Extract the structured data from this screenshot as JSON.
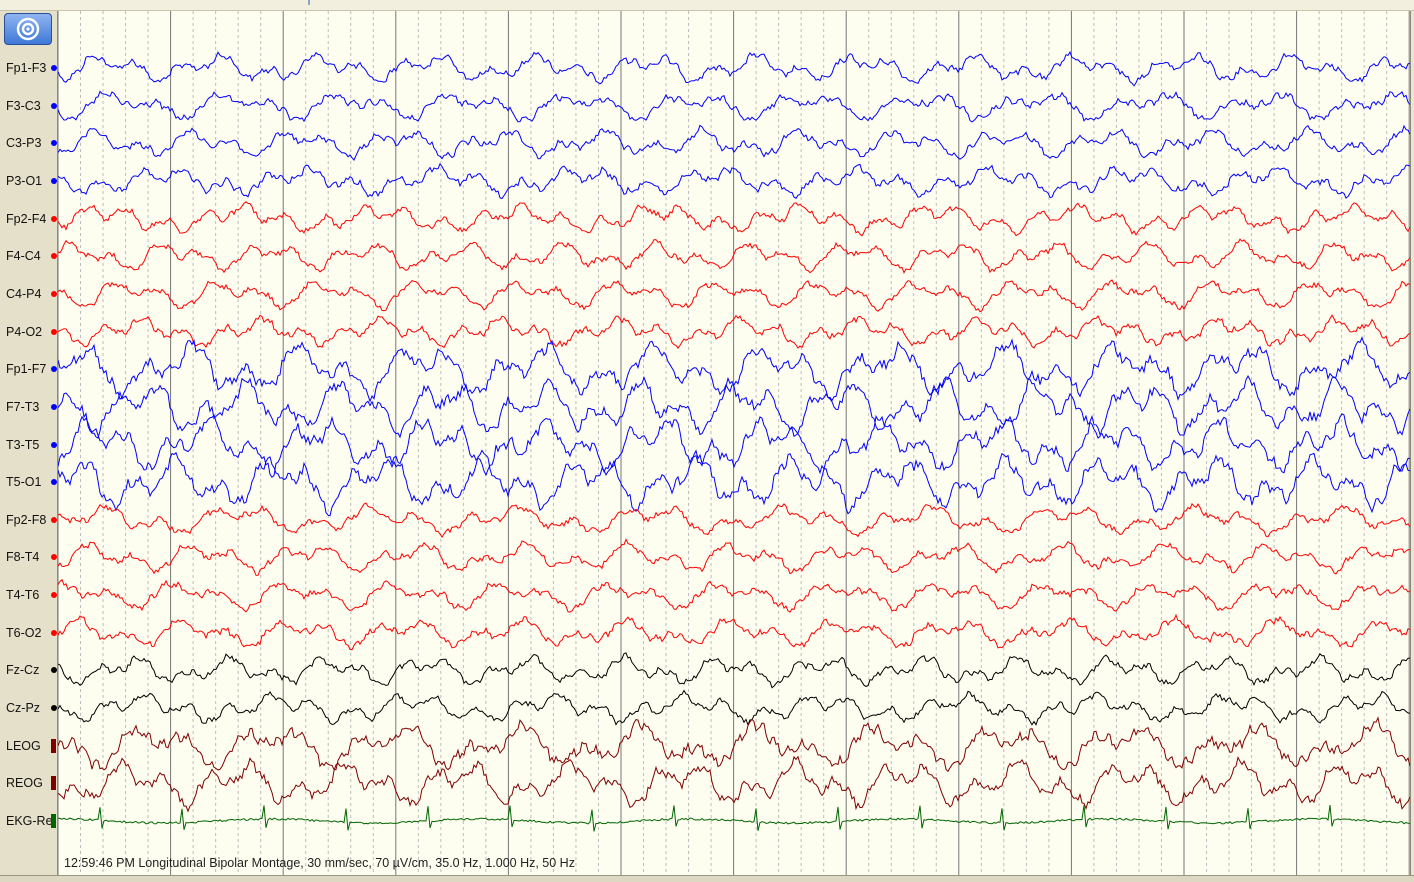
{
  "window": {
    "background": "#fdfdf0",
    "grid_major_color": "#777777",
    "grid_minor_color": "#bdbdbd"
  },
  "toolbar": {
    "montage_button_icon": "target-icon"
  },
  "channels": [
    {
      "label": "Fp1-F3",
      "color": "#0000ff",
      "marker": "dot"
    },
    {
      "label": "F3-C3",
      "color": "#0000ff",
      "marker": "dot"
    },
    {
      "label": "C3-P3",
      "color": "#0000ff",
      "marker": "dot"
    },
    {
      "label": "P3-O1",
      "color": "#0000ff",
      "marker": "dot"
    },
    {
      "label": "Fp2-F4",
      "color": "#ff0000",
      "marker": "dot"
    },
    {
      "label": "F4-C4",
      "color": "#ff0000",
      "marker": "dot"
    },
    {
      "label": "C4-P4",
      "color": "#ff0000",
      "marker": "dot"
    },
    {
      "label": "P4-O2",
      "color": "#ff0000",
      "marker": "dot"
    },
    {
      "label": "Fp1-F7",
      "color": "#0000ff",
      "marker": "dot"
    },
    {
      "label": "F7-T3",
      "color": "#0000ff",
      "marker": "dot"
    },
    {
      "label": "T3-T5",
      "color": "#0000ff",
      "marker": "dot"
    },
    {
      "label": "T5-O1",
      "color": "#0000ff",
      "marker": "dot"
    },
    {
      "label": "Fp2-F8",
      "color": "#ff0000",
      "marker": "dot"
    },
    {
      "label": "F8-T4",
      "color": "#ff0000",
      "marker": "dot"
    },
    {
      "label": "T4-T6",
      "color": "#ff0000",
      "marker": "dot"
    },
    {
      "label": "T6-O2",
      "color": "#ff0000",
      "marker": "dot"
    },
    {
      "label": "Fz-Cz",
      "color": "#000000",
      "marker": "dot"
    },
    {
      "label": "Cz-Pz",
      "color": "#000000",
      "marker": "dot"
    },
    {
      "label": "LEOG",
      "color": "#800000",
      "marker": "bar"
    },
    {
      "label": "REOG",
      "color": "#800000",
      "marker": "bar"
    },
    {
      "label": "EKG-Re",
      "color": "#006600",
      "marker": "bar"
    }
  ],
  "status": {
    "text": "12:59:46 PM Longitudinal Bipolar Montage, 30 mm/sec, 70 µV/cm, 35.0 Hz, 1.000 Hz, 50 Hz"
  }
}
